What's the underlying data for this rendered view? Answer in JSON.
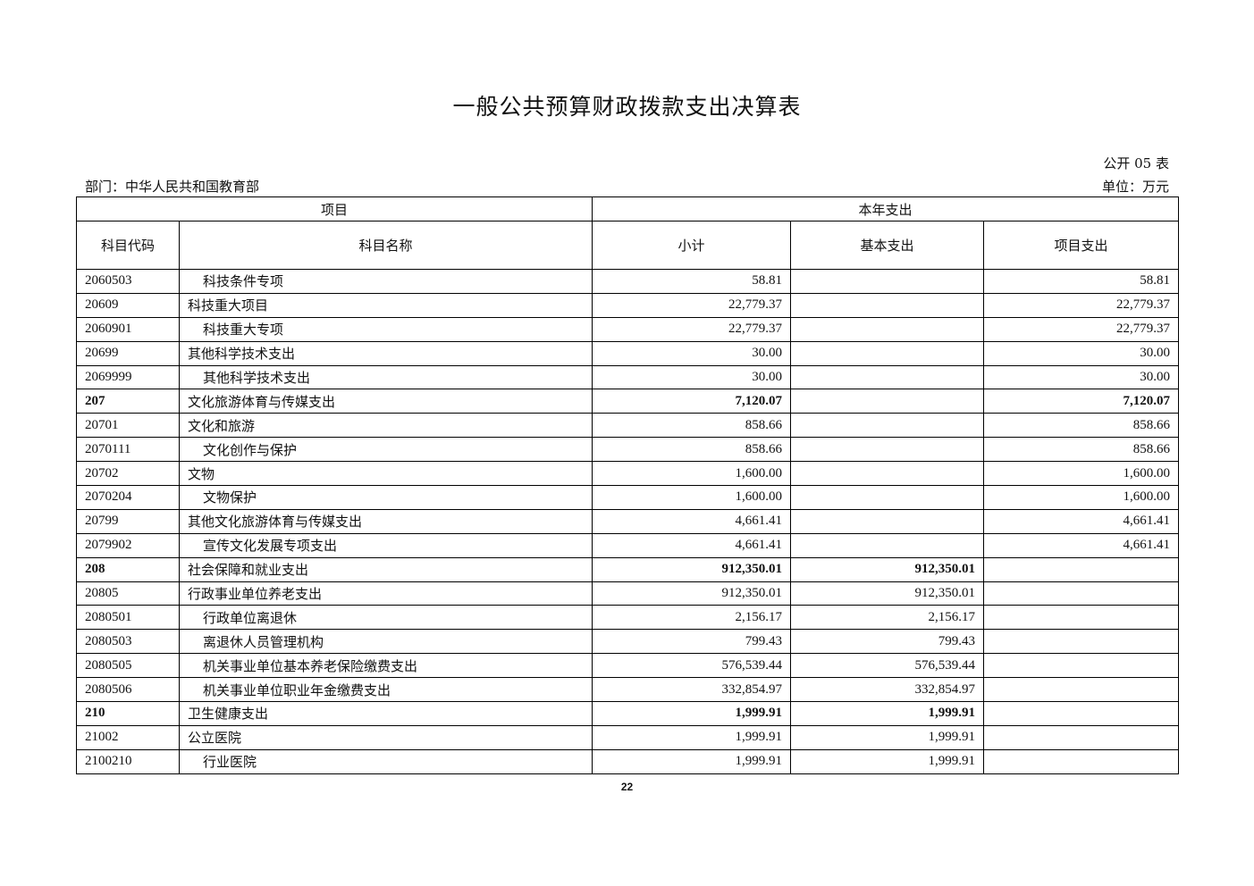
{
  "title": "一般公共预算财政拨款支出决算表",
  "table_no": "公开 05 表",
  "department": "部门：中华人民共和国教育部",
  "unit": "单位：万元",
  "headers": {
    "group_item": "项目",
    "group_year": "本年支出",
    "code": "科目代码",
    "name": "科目名称",
    "subtotal": "小计",
    "basic": "基本支出",
    "project": "项目支出"
  },
  "rows": [
    {
      "code": "2060503",
      "name": "科技条件专项",
      "indent": true,
      "bold": false,
      "subtotal": "58.81",
      "basic": "",
      "project": "58.81"
    },
    {
      "code": "20609",
      "name": "科技重大项目",
      "indent": false,
      "bold": false,
      "subtotal": "22,779.37",
      "basic": "",
      "project": "22,779.37"
    },
    {
      "code": "2060901",
      "name": "科技重大专项",
      "indent": true,
      "bold": false,
      "subtotal": "22,779.37",
      "basic": "",
      "project": "22,779.37"
    },
    {
      "code": "20699",
      "name": "其他科学技术支出",
      "indent": false,
      "bold": false,
      "subtotal": "30.00",
      "basic": "",
      "project": "30.00"
    },
    {
      "code": "2069999",
      "name": "其他科学技术支出",
      "indent": true,
      "bold": false,
      "subtotal": "30.00",
      "basic": "",
      "project": "30.00"
    },
    {
      "code": "207",
      "name": "文化旅游体育与传媒支出",
      "indent": false,
      "bold": true,
      "subtotal": "7,120.07",
      "basic": "",
      "project": "7,120.07"
    },
    {
      "code": "20701",
      "name": "文化和旅游",
      "indent": false,
      "bold": false,
      "subtotal": "858.66",
      "basic": "",
      "project": "858.66"
    },
    {
      "code": "2070111",
      "name": "文化创作与保护",
      "indent": true,
      "bold": false,
      "subtotal": "858.66",
      "basic": "",
      "project": "858.66"
    },
    {
      "code": "20702",
      "name": "文物",
      "indent": false,
      "bold": false,
      "subtotal": "1,600.00",
      "basic": "",
      "project": "1,600.00"
    },
    {
      "code": "2070204",
      "name": "文物保护",
      "indent": true,
      "bold": false,
      "subtotal": "1,600.00",
      "basic": "",
      "project": "1,600.00"
    },
    {
      "code": "20799",
      "name": "其他文化旅游体育与传媒支出",
      "indent": false,
      "bold": false,
      "subtotal": "4,661.41",
      "basic": "",
      "project": "4,661.41"
    },
    {
      "code": "2079902",
      "name": "宣传文化发展专项支出",
      "indent": true,
      "bold": false,
      "subtotal": "4,661.41",
      "basic": "",
      "project": "4,661.41"
    },
    {
      "code": "208",
      "name": "社会保障和就业支出",
      "indent": false,
      "bold": true,
      "subtotal": "912,350.01",
      "basic": "912,350.01",
      "project": ""
    },
    {
      "code": "20805",
      "name": "行政事业单位养老支出",
      "indent": false,
      "bold": false,
      "subtotal": "912,350.01",
      "basic": "912,350.01",
      "project": ""
    },
    {
      "code": "2080501",
      "name": "行政单位离退休",
      "indent": true,
      "bold": false,
      "subtotal": "2,156.17",
      "basic": "2,156.17",
      "project": ""
    },
    {
      "code": "2080503",
      "name": "离退休人员管理机构",
      "indent": true,
      "bold": false,
      "subtotal": "799.43",
      "basic": "799.43",
      "project": ""
    },
    {
      "code": "2080505",
      "name": "机关事业单位基本养老保险缴费支出",
      "indent": true,
      "bold": false,
      "subtotal": "576,539.44",
      "basic": "576,539.44",
      "project": ""
    },
    {
      "code": "2080506",
      "name": "机关事业单位职业年金缴费支出",
      "indent": true,
      "bold": false,
      "subtotal": "332,854.97",
      "basic": "332,854.97",
      "project": ""
    },
    {
      "code": "210",
      "name": "卫生健康支出",
      "indent": false,
      "bold": true,
      "subtotal": "1,999.91",
      "basic": "1,999.91",
      "project": ""
    },
    {
      "code": "21002",
      "name": "公立医院",
      "indent": false,
      "bold": false,
      "subtotal": "1,999.91",
      "basic": "1,999.91",
      "project": ""
    },
    {
      "code": "2100210",
      "name": "行业医院",
      "indent": true,
      "bold": false,
      "subtotal": "1,999.91",
      "basic": "1,999.91",
      "project": ""
    }
  ],
  "page_number": "22"
}
